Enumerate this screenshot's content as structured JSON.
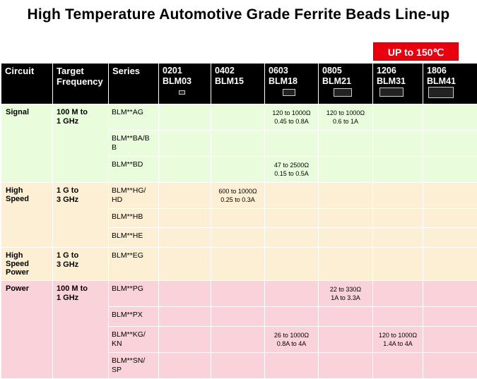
{
  "title": "High Temperature Automotive Grade Ferrite Beads Line-up",
  "badge": "UP to 150℃",
  "header": {
    "circuit": "Circuit",
    "freq_line1": "Target",
    "freq_line2": "Frequency",
    "series": "Series",
    "sizes": [
      {
        "code": "0201",
        "name": "BLM03"
      },
      {
        "code": "0402",
        "name": "BLM15"
      },
      {
        "code": "0603",
        "name": "BLM18"
      },
      {
        "code": "0805",
        "name": "BLM21"
      },
      {
        "code": "1206",
        "name": "BLM31"
      },
      {
        "code": "1806",
        "name": "BLM41"
      }
    ]
  },
  "groups": {
    "signal": {
      "name": "Signal",
      "freq1": "100 M to",
      "freq2": "1 GHz"
    },
    "highspeed": {
      "name": "High Speed",
      "freq1": "1 G to",
      "freq2": "3 GHz"
    },
    "highspeedpower": {
      "name1": "High Speed",
      "name2": "Power",
      "freq1": "1 G to",
      "freq2": "3 GHz"
    },
    "power": {
      "name": "Power",
      "freq1": "100 M to",
      "freq2": "1 GHz"
    }
  },
  "rows": {
    "ag": {
      "s1": "BLM**AG",
      "v18a": "120 to 1000Ω",
      "v18b": "0.45 to 0.8A",
      "v21a": "120 to 1000Ω",
      "v21b": "0.6 to 1A"
    },
    "ba": {
      "s1": "BLM**BA/B",
      "s2": "B"
    },
    "bd": {
      "s1": "BLM**BD",
      "v18a": "47 to 2500Ω",
      "v18b": "0.15 to 0.5A"
    },
    "hg": {
      "s1": "BLM**HG/",
      "s2": "HD",
      "v15a": "600 to 1000Ω",
      "v15b": "0.25 to 0.3A"
    },
    "hb": {
      "s1": "BLM**HB"
    },
    "he": {
      "s1": "BLM**HE"
    },
    "eg": {
      "s1": "BLM**EG"
    },
    "pg": {
      "s1": "BLM**PG",
      "v21a": "22 to 330Ω",
      "v21b": "1A to 3.3A"
    },
    "px": {
      "s1": "BLM**PX"
    },
    "kg": {
      "s1": "BLM**KG/",
      "s2": "KN",
      "v18a": "26 to 1000Ω",
      "v18b": "0.8A to 4A",
      "v31a": "120 to 1000Ω",
      "v31b": "1.4A to 4A"
    },
    "sn": {
      "s1": "BLM**SN/",
      "s2": "SP"
    }
  }
}
